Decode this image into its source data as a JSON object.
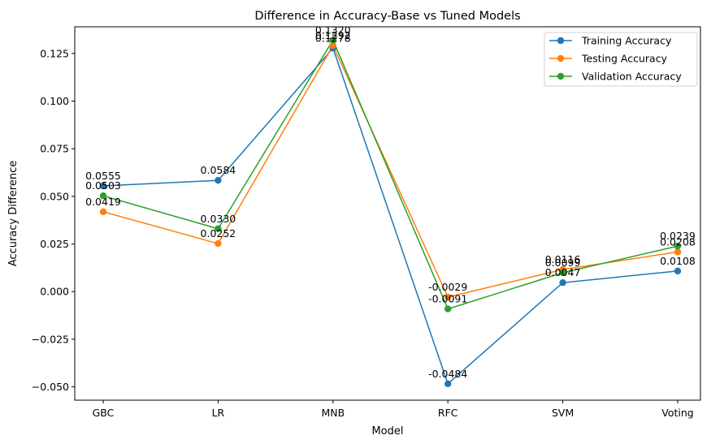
{
  "chart_data": {
    "type": "line",
    "title": "Difference in Accuracy-Base vs Tuned Models",
    "xlabel": "Model",
    "ylabel": "Accuracy Difference",
    "categories": [
      "GBC",
      "LR",
      "MNB",
      "RFC",
      "SVM",
      "Voting"
    ],
    "ylim": [
      -0.057,
      0.139
    ],
    "yticks": [
      -0.05,
      -0.025,
      0.0,
      0.025,
      0.05,
      0.075,
      0.1,
      0.125
    ],
    "ytick_labels": [
      "−0.050",
      "−0.025",
      "0.000",
      "0.025",
      "0.050",
      "0.075",
      "0.100",
      "0.125"
    ],
    "grid": false,
    "legend_position": "top-right",
    "series": [
      {
        "name": "Training Accuracy",
        "color": "#1f77b4",
        "values": [
          0.0555,
          0.0584,
          0.1278,
          -0.0484,
          0.0047,
          0.0108
        ],
        "labels": [
          "0.0555",
          "0.0584",
          "0.1278",
          "-0.0484",
          "0.0047",
          "0.0108"
        ]
      },
      {
        "name": "Testing Accuracy",
        "color": "#ff7f0e",
        "values": [
          0.0419,
          0.0252,
          0.1292,
          -0.0029,
          0.0116,
          0.0208
        ],
        "labels": [
          "0.0419",
          "0.0252",
          "0.1292",
          "-0.0029",
          "0.0116",
          "0.0208"
        ]
      },
      {
        "name": "Validation Accuracy",
        "color": "#2ca02c",
        "values": [
          0.0503,
          0.033,
          0.132,
          -0.0091,
          0.0099,
          0.0239
        ],
        "labels": [
          "0.0503",
          "0.0330",
          "0.1320",
          "-0.0091",
          "0.0099",
          "0.0239"
        ]
      }
    ]
  }
}
